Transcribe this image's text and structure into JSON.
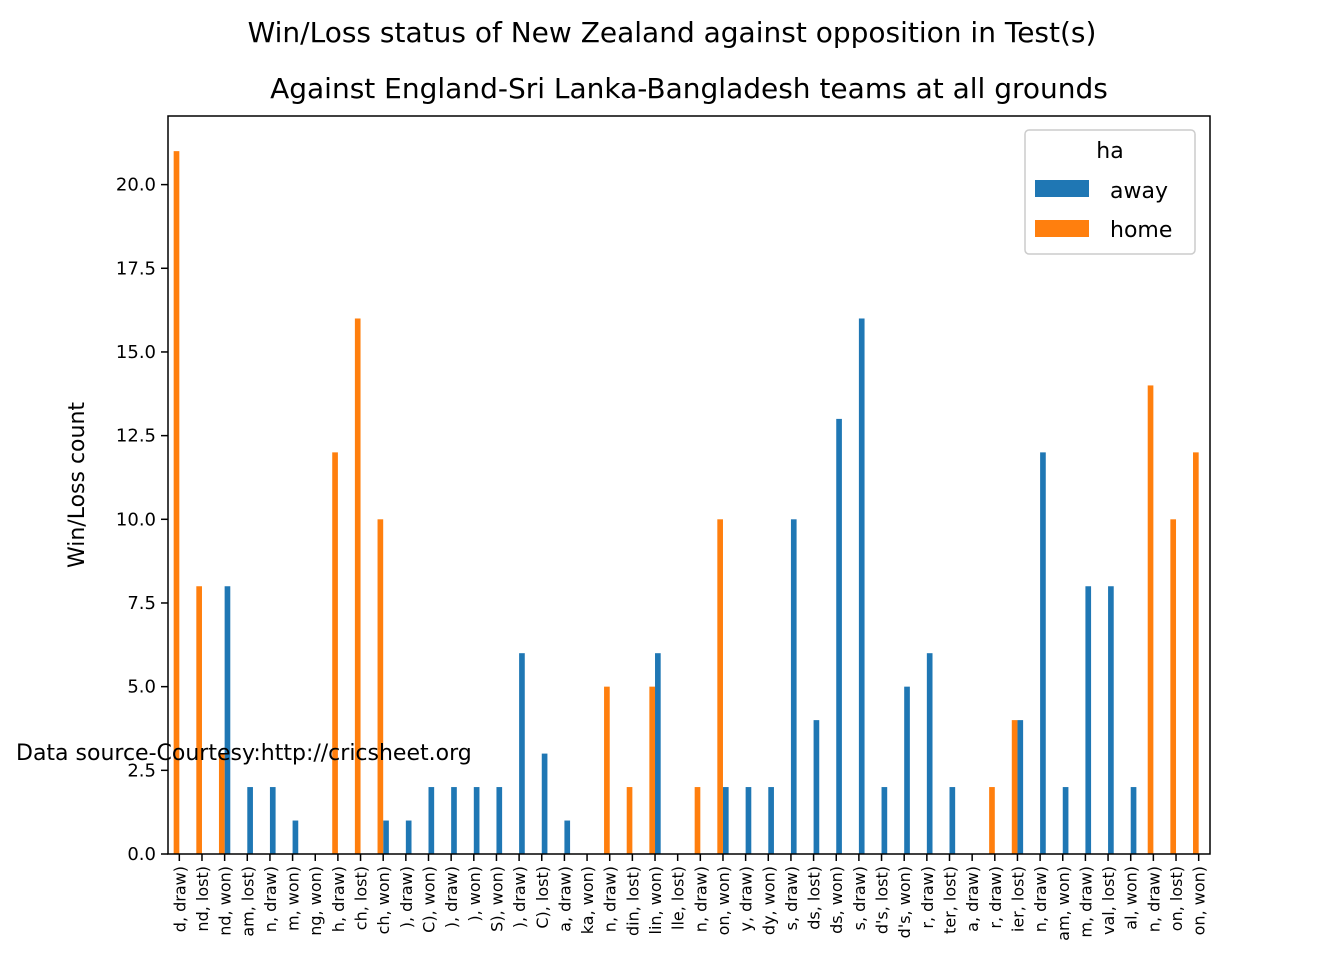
{
  "chart_data": {
    "type": "bar",
    "title": "Win/Loss status of New Zealand against opposition in Test(s)",
    "subtitle": "Against England-Sri Lanka-Bangladesh teams at all grounds",
    "ylabel": "Win/Loss count",
    "xlabel": "",
    "ylim": [
      0,
      22.05
    ],
    "yticks": [
      "0.0",
      "2.5",
      "5.0",
      "7.5",
      "10.0",
      "12.5",
      "15.0",
      "17.5",
      "20.0"
    ],
    "grid": false,
    "legend": {
      "title": "ha",
      "placement": "top-right"
    },
    "annotation": "Data source-Courtesy:http://cricsheet.org",
    "categories": [
      "d, draw)",
      "nd, lost)",
      "nd, won)",
      "am, lost)",
      "n, draw)",
      "m, won)",
      "ng, won)",
      "h, draw)",
      "ch, lost)",
      "ch, won)",
      "), draw)",
      "C), won)",
      "), draw)",
      "), won)",
      "S), won)",
      "), draw)",
      "C), lost)",
      "a, draw)",
      "ka, won)",
      "n, draw)",
      "din, lost)",
      "lin, won)",
      "lle, lost)",
      "n, draw)",
      "on, won)",
      "y, draw)",
      "dy, won)",
      "s, draw)",
      "ds, lost)",
      "ds, won)",
      "s, draw)",
      "d's, lost)",
      "d's, won)",
      "r, draw)",
      "ter, lost)",
      "a, draw)",
      "r, draw)",
      "ier, lost)",
      "n, draw)",
      "am, won)",
      "m, draw)",
      "val, lost)",
      "al, won)",
      "n, draw)",
      "on, lost)",
      "on, won)"
    ],
    "series": [
      {
        "name": "away",
        "color": "#1f77b4",
        "values": [
          0,
          0,
          8,
          2,
          2,
          1,
          0,
          0,
          0,
          1,
          1,
          2,
          2,
          2,
          2,
          6,
          3,
          1,
          0,
          0,
          0,
          6,
          0,
          0,
          2,
          2,
          2,
          10,
          4,
          13,
          16,
          2,
          5,
          6,
          2,
          0,
          0,
          4,
          12,
          2,
          8,
          8,
          2,
          0,
          0,
          0
        ]
      },
      {
        "name": "home",
        "color": "#ff7f0e",
        "values": [
          21,
          8,
          3,
          0,
          0,
          0,
          0,
          12,
          16,
          10,
          0,
          0,
          0,
          0,
          0,
          0,
          0,
          0,
          0,
          5,
          2,
          5,
          0,
          2,
          10,
          0,
          0,
          0,
          0,
          0,
          0,
          0,
          0,
          0,
          0,
          0,
          2,
          4,
          0,
          0,
          0,
          0,
          0,
          14,
          10,
          12
        ]
      }
    ],
    "x_mismatch_note": ""
  }
}
